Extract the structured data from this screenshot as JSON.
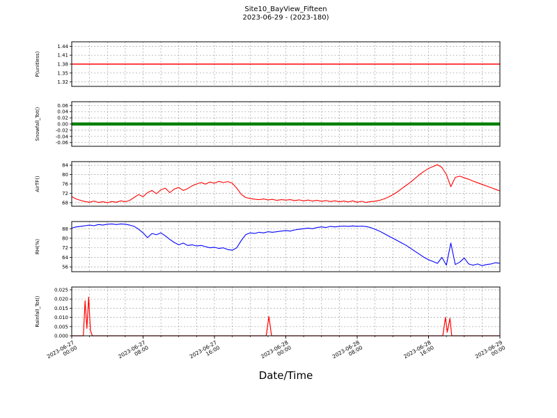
{
  "title": {
    "line1": "Site10_BayView_Fifteen",
    "line2": "2023-06-29 - (2023-180)"
  },
  "xlabel": "Date/Time",
  "chart_data": {
    "type": "line",
    "title": "Site10_BayView_Fifteen",
    "subtitle": "2023-06-29 - (2023-180)",
    "xlabel": "Date/Time",
    "x_unit": "hours since 2023-06-27 00:00",
    "xlim": [
      0,
      48
    ],
    "x_minor_step": 2,
    "grid": true,
    "x_major_ticks": [
      0,
      8,
      16,
      24,
      32,
      40,
      48
    ],
    "x_tick_labels": [
      {
        "date": "2023-06-27",
        "time": "00:00"
      },
      {
        "date": "2023-06-27",
        "time": "08:00"
      },
      {
        "date": "2023-06-27",
        "time": "16:00"
      },
      {
        "date": "2023-06-28",
        "time": "00:00"
      },
      {
        "date": "2023-06-28",
        "time": "08:00"
      },
      {
        "date": "2023-06-28",
        "time": "16:00"
      },
      {
        "date": "2023-06-29",
        "time": "00:00"
      }
    ],
    "panels": [
      {
        "name": "P",
        "ylabel": "P(unitless)",
        "color": "#ff0000",
        "linewidth": 1.4,
        "ylim": [
          1.305,
          1.455
        ],
        "yticks": [
          1.32,
          1.35,
          1.38,
          1.41,
          1.44
        ],
        "ytick_labels": [
          "1.32",
          "1.35",
          "1.38",
          "1.41",
          "1.44"
        ],
        "x": [
          0,
          48
        ],
        "y": [
          1.38,
          1.38
        ]
      },
      {
        "name": "Snowfall_Tot",
        "ylabel": "Snowfall_Tot()",
        "color": "#008000",
        "linewidth": 4.5,
        "ylim": [
          -0.072,
          0.072
        ],
        "yticks": [
          -0.06,
          -0.04,
          -0.02,
          0,
          0.02,
          0.04,
          0.06
        ],
        "ytick_labels": [
          "-0.06",
          "-0.04",
          "-0.02",
          "0.00",
          "0.02",
          "0.04",
          "0.06"
        ],
        "x": [
          0,
          48
        ],
        "y": [
          0,
          0
        ]
      },
      {
        "name": "AirTF",
        "ylabel": "AirTF()",
        "color": "#ff0000",
        "linewidth": 1.1,
        "ylim": [
          66.5,
          85.5
        ],
        "yticks": [
          68,
          72,
          76,
          80,
          84
        ],
        "ytick_labels": [
          "68",
          "72",
          "76",
          "80",
          "84"
        ],
        "x_start": 0,
        "x_step": 0.5,
        "y": [
          70.6,
          69.6,
          69.0,
          68.5,
          68.2,
          68.7,
          68.1,
          68.4,
          68.0,
          68.5,
          68.2,
          68.8,
          68.4,
          69.0,
          70.2,
          71.5,
          70.6,
          72.3,
          73.2,
          71.8,
          73.5,
          74.2,
          72.3,
          73.8,
          74.5,
          73.2,
          74.0,
          75.2,
          76.0,
          76.6,
          75.9,
          76.8,
          76.3,
          77.1,
          76.6,
          77.0,
          76.3,
          74.2,
          71.6,
          70.2,
          69.8,
          69.5,
          69.3,
          69.6,
          69.2,
          69.4,
          69.0,
          69.3,
          69.1,
          69.3,
          68.9,
          69.2,
          68.8,
          69.1,
          68.7,
          69.0,
          68.6,
          68.9,
          68.5,
          68.8,
          68.4,
          68.7,
          68.3,
          68.8,
          68.2,
          68.6,
          68.1,
          68.5,
          68.6,
          69.0,
          69.6,
          70.4,
          71.4,
          72.6,
          74.0,
          75.4,
          76.8,
          78.4,
          80.0,
          81.4,
          82.6,
          83.4,
          84.2,
          83.0,
          80.0,
          74.8,
          78.8,
          79.3,
          78.6,
          78.0,
          77.2,
          76.5,
          75.8,
          75.1,
          74.4,
          73.7,
          73.0
        ]
      },
      {
        "name": "RH",
        "ylabel": "RH(%)",
        "color": "#0000ff",
        "linewidth": 1.1,
        "ylim": [
          52,
          94
        ],
        "yticks": [
          56,
          64,
          72,
          80,
          88
        ],
        "ytick_labels": [
          "56",
          "64",
          "72",
          "80",
          "88"
        ],
        "x_start": 0,
        "x_step": 0.5,
        "y": [
          88.5,
          89.5,
          90.0,
          90.5,
          91.0,
          90.5,
          91.5,
          91.0,
          91.8,
          92.0,
          91.5,
          92.0,
          91.8,
          91.0,
          90.0,
          87.5,
          84.5,
          80.5,
          84.0,
          83.0,
          84.5,
          82.0,
          79.0,
          76.5,
          74.5,
          76.0,
          74.0,
          74.5,
          73.5,
          74.0,
          73.0,
          72.0,
          72.5,
          71.5,
          72.0,
          70.5,
          70.0,
          72.0,
          78.0,
          83.0,
          84.5,
          84.0,
          85.0,
          84.5,
          85.5,
          85.0,
          85.5,
          86.0,
          86.5,
          86.0,
          87.0,
          87.5,
          88.0,
          88.5,
          88.0,
          89.0,
          89.5,
          89.0,
          90.0,
          89.5,
          90.0,
          90.2,
          90.0,
          90.3,
          90.0,
          90.2,
          89.8,
          89.0,
          87.5,
          86.0,
          84.0,
          82.0,
          80.0,
          78.0,
          76.0,
          74.0,
          71.5,
          69.0,
          66.5,
          64.0,
          62.0,
          60.5,
          59.0,
          64.0,
          57.5,
          76.0,
          58.0,
          60.0,
          63.5,
          58.5,
          57.5,
          58.5,
          57.0,
          58.0,
          58.5,
          59.5,
          59.0
        ]
      },
      {
        "name": "Rainfall_Tot",
        "ylabel": "Rainfall_Tot()",
        "color": "#ff0000",
        "linewidth": 1.2,
        "ylim": [
          0,
          0.0265
        ],
        "yticks": [
          0,
          0.005,
          0.01,
          0.015,
          0.02,
          0.025
        ],
        "ytick_labels": [
          "0.000",
          "0.005",
          "0.010",
          "0.015",
          "0.020",
          "0.025"
        ],
        "x": [
          0,
          1.3,
          1.5,
          1.7,
          1.9,
          2.1,
          2.3,
          21.8,
          22.1,
          22.4,
          22.7,
          41.6,
          41.9,
          42.1,
          42.4,
          42.6,
          42.9,
          48
        ],
        "y": [
          0,
          0,
          0.019,
          0.004,
          0.021,
          0.003,
          0,
          0,
          0.0105,
          0,
          0,
          0,
          0.01,
          0.002,
          0.0095,
          0,
          0,
          0
        ]
      }
    ]
  }
}
